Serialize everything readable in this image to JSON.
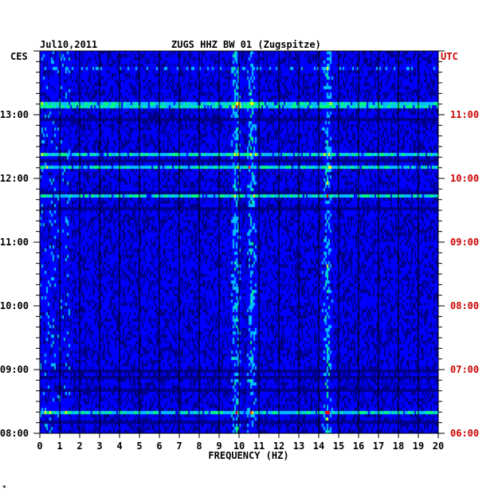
{
  "chart_data": {
    "type": "heatmap",
    "date": "Jul10,2011",
    "title": "ZUGS HHZ BW 01 (Zugspitze)",
    "xlabel": "FREQUENCY (HZ)",
    "left_timezone": "CES",
    "right_timezone": "UTC",
    "x_ticks": [
      "0",
      "1",
      "2",
      "3",
      "4",
      "5",
      "6",
      "7",
      "8",
      "9",
      "10",
      "11",
      "12",
      "13",
      "14",
      "15",
      "16",
      "17",
      "18",
      "19",
      "20"
    ],
    "xlim": [
      0,
      20
    ],
    "left_time_ticks": [
      "08:00",
      "09:00",
      "10:00",
      "11:00",
      "12:00",
      "13:00"
    ],
    "right_time_ticks": [
      "06:00",
      "07:00",
      "08:00",
      "09:00",
      "10:00",
      "11:00"
    ],
    "time_range_ces": [
      "08:00",
      "14:00"
    ],
    "colormap": [
      "#00008b",
      "#0000ff",
      "#00bfff",
      "#00ff80",
      "#ffff00",
      "#ff0000"
    ],
    "prominent_bands_hz": [
      9.8,
      10.6,
      14.4
    ],
    "grid": true
  },
  "footer_mark": "*"
}
